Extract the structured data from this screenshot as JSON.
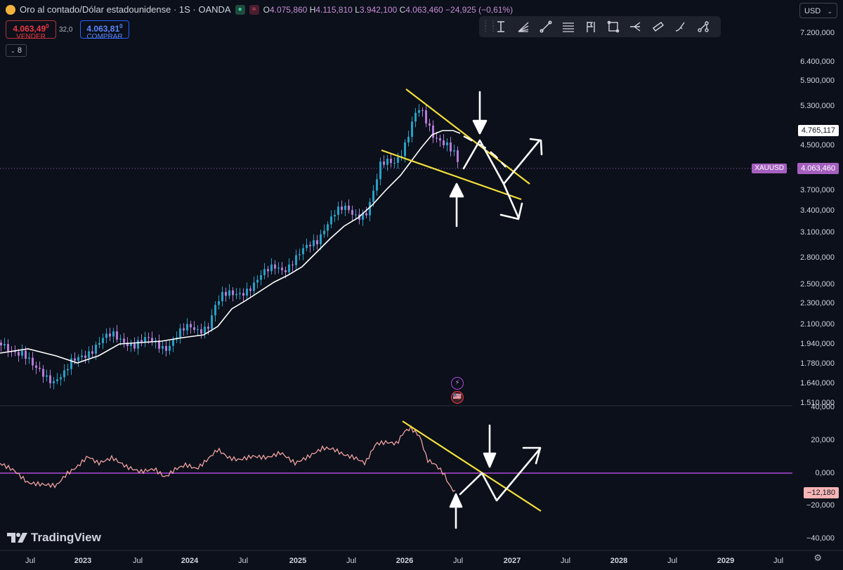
{
  "header": {
    "symbol_title": "Oro al contado/Dólar estadounidense · 1S · OANDA",
    "open_label": "O",
    "open": "4.075,860",
    "high_label": "H",
    "high": "4.115,810",
    "low_label": "L",
    "low": "3.942,100",
    "close_label": "C",
    "close": "4.063,460",
    "change": "−24,925 (−0,61%)"
  },
  "trade": {
    "sell_price": "4.063,49",
    "sell_sup": "0",
    "sell_label": "VENDER",
    "spread": "32,0",
    "buy_price": "4.063,81",
    "buy_sup": "0",
    "buy_label": "COMPRAR"
  },
  "indicators_count": "8",
  "currency": "USD",
  "toolbar": {
    "tools": [
      "text-cursor-icon",
      "fib-fan-icon",
      "trend-line-icon",
      "parallel-lines-icon",
      "flag-icon",
      "rectangle-icon",
      "fork-icon",
      "channel-icon",
      "brush-icon",
      "path-icon"
    ]
  },
  "price_axis": {
    "ticks": [
      "7.200,000",
      "6.400,000",
      "5.900,000",
      "5.300,000",
      "4.500,000",
      "3.700,000",
      "3.400,000",
      "3.100,000",
      "2.800,000",
      "2.500,000",
      "2.300,000",
      "2.100,000",
      "1.940,000",
      "1.780,000",
      "1.640,000",
      "1.510,000"
    ],
    "ma_label": "4.765,117",
    "price_label": "4.063,460",
    "symbol_tag": "XAUUSD"
  },
  "rsi_axis": {
    "ticks": [
      "40,000",
      "20,000",
      "0,000",
      "−20,000",
      "−40,000"
    ],
    "value_label": "−12,180"
  },
  "time_axis": {
    "labels": [
      {
        "text": "Jul",
        "year": false
      },
      {
        "text": "2023",
        "year": true
      },
      {
        "text": "Jul",
        "year": false
      },
      {
        "text": "2024",
        "year": true
      },
      {
        "text": "Jul",
        "year": false
      },
      {
        "text": "2025",
        "year": true
      },
      {
        "text": "Jul",
        "year": false
      },
      {
        "text": "2026",
        "year": true
      },
      {
        "text": "Jul",
        "year": false
      },
      {
        "text": "2027",
        "year": true
      },
      {
        "text": "Jul",
        "year": false
      },
      {
        "text": "2028",
        "year": true
      },
      {
        "text": "Jul",
        "year": false
      },
      {
        "text": "2029",
        "year": true
      },
      {
        "text": "Jul",
        "year": false
      }
    ]
  },
  "branding": "TradingView",
  "colors": {
    "background": "#0b101a",
    "bull": "#26a0c4",
    "bear": "#b57bd6",
    "moving_average": "#ffffff",
    "trend_lines": "#f5e03a",
    "rsi_line": "#f0a0a0",
    "zero_line": "#b04ad8",
    "sell": "#f23645",
    "buy": "#2962ff"
  }
}
